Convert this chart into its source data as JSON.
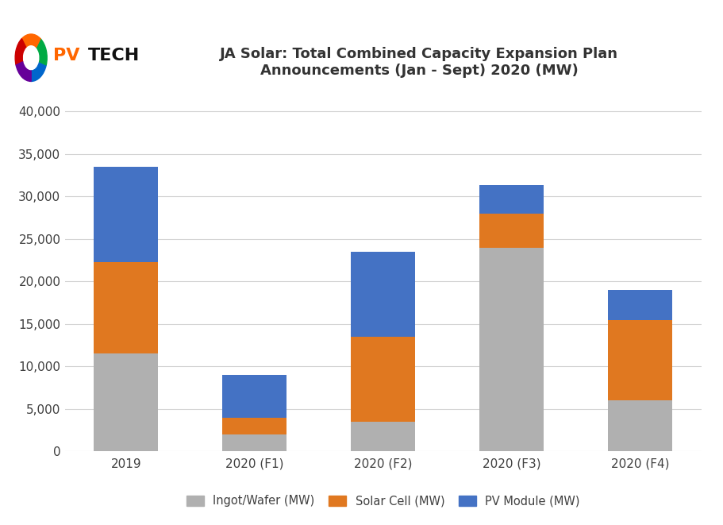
{
  "categories": [
    "2019",
    "2020 (F1)",
    "2020 (F2)",
    "2020 (F3)",
    "2020 (F4)"
  ],
  "ingot_wafer": [
    11500,
    2000,
    3500,
    24000,
    6000
  ],
  "solar_cell": [
    10800,
    2000,
    10000,
    4000,
    9500
  ],
  "pv_module": [
    11200,
    5000,
    10000,
    3300,
    3500
  ],
  "color_ingot": "#B0B0B0",
  "color_solar": "#E07820",
  "color_pv": "#4472C4",
  "title_line1": "JA Solar: Total Combined Capacity Expansion Plan",
  "title_line2": "Announcements (Jan - Sept) 2020 (MW)",
  "ylim": [
    0,
    42000
  ],
  "yticks": [
    0,
    5000,
    10000,
    15000,
    20000,
    25000,
    30000,
    35000,
    40000
  ],
  "legend_labels": [
    "Ingot/Wafer (MW)",
    "Solar Cell (MW)",
    "PV Module (MW)"
  ],
  "background_color": "#FFFFFF",
  "grid_color": "#D3D3D3",
  "bar_width": 0.5,
  "title_fontsize": 13,
  "tick_fontsize": 11
}
